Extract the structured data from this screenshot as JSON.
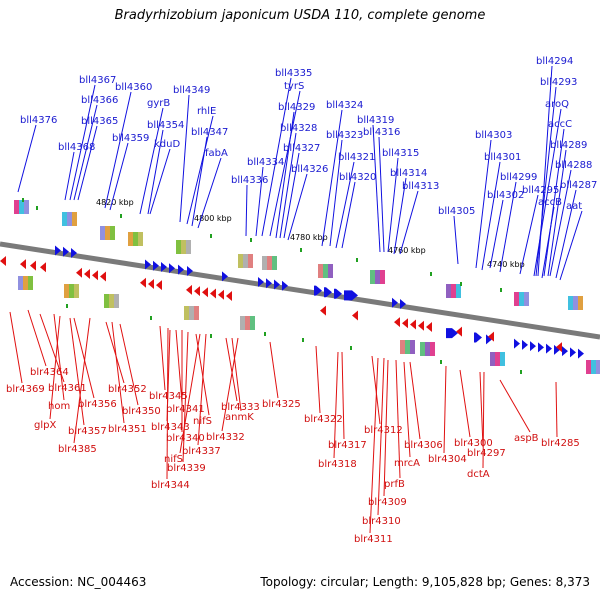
{
  "title": "Bradyrhizobium japonicum USDA 110, complete genome",
  "footer": {
    "accession": "Accession: NC_004463",
    "stats": "Topology: circular; Length: 9,105,828 bp; Genes: 8,373"
  },
  "ticks": [
    "4820 kbp",
    "4800 kbp",
    "4780 kbp",
    "4760 kbp",
    "4740 kbp"
  ],
  "colors": {
    "forward": "#1010e0",
    "reverse": "#e01010",
    "backbone": "#7a7a7a"
  },
  "top_labels": [
    "bll4376",
    "bll4368",
    "bll4367",
    "bll4366",
    "bll4365",
    "bll4360",
    "bll4359",
    "gyrB",
    "bll4354",
    "kduD",
    "bll4349",
    "rhlE",
    "bll4347",
    "fabA",
    "bll4336",
    "bll4335",
    "bll4334",
    "tyrS",
    "bll4329",
    "bll4328",
    "bll4327",
    "bll4326",
    "bll4324",
    "bll4323",
    "bll4321",
    "bll4320",
    "bll4319",
    "bll4316",
    "bll4315",
    "bll4314",
    "bll4313",
    "bll4305",
    "bll4303",
    "bll4302",
    "bll4301",
    "bll4299",
    "bll4295",
    "bll4294",
    "bll4293",
    "aroQ",
    "accC",
    "bll4289",
    "bll4288",
    "bll4287",
    "accB",
    "aat"
  ],
  "bottom_labels": [
    "blr4369",
    "blr4364",
    "blr4361",
    "hom",
    "glpX",
    "blr4357",
    "blr4356",
    "blr4385",
    "blr4352",
    "blr4351",
    "blr4350",
    "blr4345",
    "blr4344",
    "blr4343",
    "blr4341",
    "blr4340",
    "blr4339",
    "nifS",
    "nifS",
    "blr4337",
    "blr4333",
    "anmK",
    "blr4332",
    "blr4325",
    "blr4322",
    "blr4318",
    "blr4317",
    "blr4312",
    "blr4311",
    "blr4310",
    "blr4309",
    "prfB",
    "mrcA",
    "blr4306",
    "blr4304",
    "blr4300",
    "blr4297",
    "dctA",
    "aspB",
    "blr4285"
  ]
}
